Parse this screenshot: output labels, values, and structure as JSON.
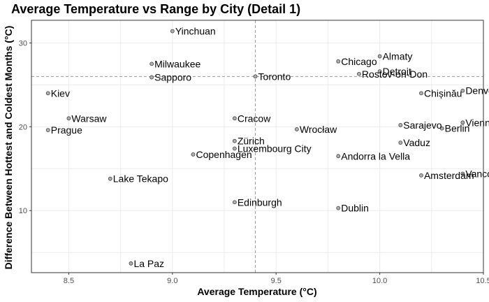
{
  "chart_data": {
    "type": "scatter",
    "title": "Average Temperature vs Range by City (Detail 1)",
    "xlabel": "Average Temperature (°C)",
    "ylabel": "Difference Between Hottest and Coldest Months (°C)",
    "xlim": [
      8.32,
      10.5
    ],
    "ylim": [
      2.6,
      32.7
    ],
    "xticks": [
      8.5,
      9.0,
      9.5,
      10.0,
      10.5
    ],
    "xtick_labels": [
      "8.5",
      "9.0",
      "9.5",
      "10.0",
      "10.5"
    ],
    "yticks": [
      10,
      20,
      30
    ],
    "ytick_labels": [
      "10",
      "20",
      "30"
    ],
    "reference_lines": {
      "x": 9.4,
      "y": 26
    },
    "grid": true,
    "legend": "none",
    "points": [
      {
        "label": "Yinchuan",
        "x": 9.0,
        "y": 31.4
      },
      {
        "label": "Milwaukee",
        "x": 8.9,
        "y": 27.5
      },
      {
        "label": "Sapporo",
        "x": 8.9,
        "y": 25.9
      },
      {
        "label": "Kiev",
        "x": 8.4,
        "y": 24.0
      },
      {
        "label": "Warsaw",
        "x": 8.5,
        "y": 21.0
      },
      {
        "label": "Prague",
        "x": 8.4,
        "y": 19.6
      },
      {
        "label": "Lake Tekapo",
        "x": 8.7,
        "y": 13.8
      },
      {
        "label": "La Paz",
        "x": 8.8,
        "y": 3.7
      },
      {
        "label": "Toronto",
        "x": 9.4,
        "y": 26.0
      },
      {
        "label": "Cracow",
        "x": 9.3,
        "y": 21.0
      },
      {
        "label": "Zürich",
        "x": 9.3,
        "y": 18.3
      },
      {
        "label": "Luxembourg City",
        "x": 9.3,
        "y": 17.4
      },
      {
        "label": "Copenhagen",
        "x": 9.1,
        "y": 16.7
      },
      {
        "label": "Edinburgh",
        "x": 9.3,
        "y": 11.0
      },
      {
        "label": "Wrocław",
        "x": 9.6,
        "y": 19.7
      },
      {
        "label": "Chicago",
        "x": 9.8,
        "y": 27.8
      },
      {
        "label": "Almaty",
        "x": 10.0,
        "y": 28.4
      },
      {
        "label": "Detroit",
        "x": 10.0,
        "y": 26.6
      },
      {
        "label": "Rostov-on-Don",
        "x": 9.9,
        "y": 26.3
      },
      {
        "label": "Andorra la Vella",
        "x": 9.8,
        "y": 16.5
      },
      {
        "label": "Dublin",
        "x": 9.8,
        "y": 10.3
      },
      {
        "label": "Chișinău",
        "x": 10.2,
        "y": 24.0
      },
      {
        "label": "Denver",
        "x": 10.4,
        "y": 24.3
      },
      {
        "label": "Sarajevo",
        "x": 10.1,
        "y": 20.2
      },
      {
        "label": "Berlin",
        "x": 10.3,
        "y": 19.8
      },
      {
        "label": "Vienna",
        "x": 10.4,
        "y": 20.5
      },
      {
        "label": "Vaduz",
        "x": 10.1,
        "y": 18.1
      },
      {
        "label": "Amsterdam",
        "x": 10.2,
        "y": 14.2
      },
      {
        "label": "Vancouver",
        "x": 10.4,
        "y": 14.4
      }
    ]
  }
}
